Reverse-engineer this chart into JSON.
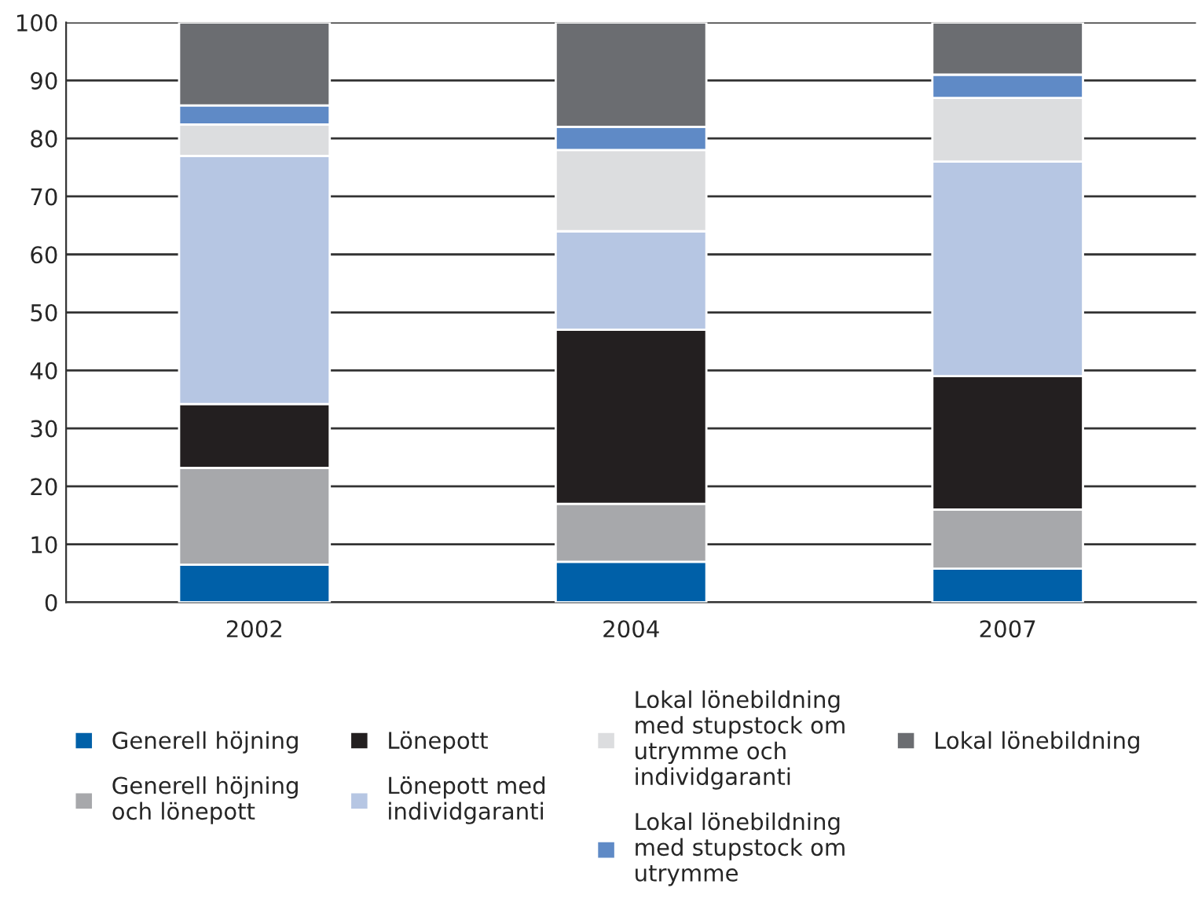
{
  "chart_data": {
    "type": "bar",
    "stacked": true,
    "categories": [
      "2002",
      "2004",
      "2007"
    ],
    "series": [
      {
        "name": "Generell höjning",
        "color": "#0060a8",
        "values": [
          6.5,
          7,
          5.8
        ]
      },
      {
        "name": "Generell höjning\noch lönepott",
        "color": "#a7a8ab",
        "values": [
          16.7,
          10,
          10.2
        ]
      },
      {
        "name": "Lönepott",
        "color": "#231f20",
        "values": [
          11,
          30,
          23
        ]
      },
      {
        "name": "Lönepott med\nindividgaranti",
        "color": "#b6c6e3",
        "values": [
          42.8,
          17,
          37
        ]
      },
      {
        "name": "Lokal lönebildning\nmed stupstock om\nutrymme och\nindividgaranti",
        "color": "#dcdddf",
        "values": [
          5.4,
          14,
          11
        ]
      },
      {
        "name": "Lokal lönebildning\nmed stupstock om\nutrymme",
        "color": "#5f8ac6",
        "values": [
          3.3,
          4,
          4
        ]
      },
      {
        "name": "Lokal lönebildning",
        "color": "#6b6d71",
        "values": [
          14.3,
          18,
          9
        ]
      }
    ],
    "ylim": [
      0,
      100
    ],
    "yticks": [
      0,
      10,
      20,
      30,
      40,
      50,
      60,
      70,
      80,
      90,
      100
    ],
    "grid": "y",
    "legend": "bottom"
  }
}
